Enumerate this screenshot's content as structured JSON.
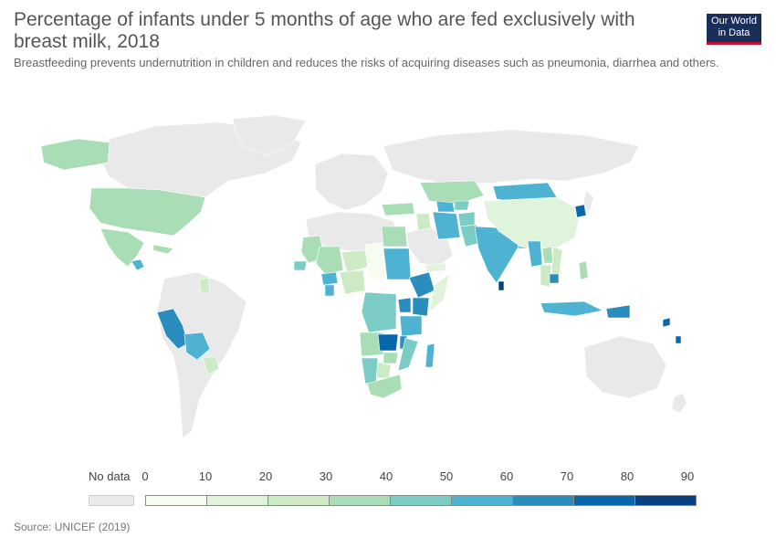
{
  "header": {
    "title": "Percentage of infants under 5 months of age who are fed exclusively with breast milk, 2018",
    "subtitle": "Breastfeeding prevents undernutrition in children and reduces the risks of acquiring diseases such as pneumonia, diarrhea and others."
  },
  "logo": {
    "line1": "Our World",
    "line2": "in Data",
    "bg": "#1a2e5a",
    "accent": "#c8102e"
  },
  "legend": {
    "no_data_label": "No data",
    "no_data_color": "#e9e9e9",
    "ticks": [
      "0",
      "10",
      "20",
      "30",
      "40",
      "50",
      "60",
      "70",
      "80",
      "90"
    ],
    "bins": [
      "#f7fcf0",
      "#e0f3db",
      "#ccebc5",
      "#a8ddb5",
      "#7bccc4",
      "#4eb3d3",
      "#2b8cbe",
      "#0868ac",
      "#084081"
    ]
  },
  "source": "Source: UNICEF (2019)",
  "chart_data": {
    "type": "choropleth",
    "value_unit": "%",
    "scale": [
      0,
      90
    ],
    "regions": [
      {
        "name": "United States",
        "value": 35
      },
      {
        "name": "Mexico",
        "value": 30
      },
      {
        "name": "Guatemala",
        "value": 55
      },
      {
        "name": "Peru",
        "value": 65
      },
      {
        "name": "Bolivia",
        "value": 55
      },
      {
        "name": "Paraguay",
        "value": 25
      },
      {
        "name": "Guyana",
        "value": 25
      },
      {
        "name": "Mauritania",
        "value": 40
      },
      {
        "name": "Senegal",
        "value": 45
      },
      {
        "name": "Mali",
        "value": 40
      },
      {
        "name": "Burkina Faso",
        "value": 50
      },
      {
        "name": "Ghana",
        "value": 55
      },
      {
        "name": "Nigeria",
        "value": 25
      },
      {
        "name": "Niger",
        "value": 25
      },
      {
        "name": "Chad",
        "value": 5
      },
      {
        "name": "Sudan",
        "value": 55
      },
      {
        "name": "Egypt",
        "value": 40
      },
      {
        "name": "Ethiopia",
        "value": 60
      },
      {
        "name": "Somalia",
        "value": 10
      },
      {
        "name": "Kenya",
        "value": 60
      },
      {
        "name": "Uganda",
        "value": 65
      },
      {
        "name": "Tanzania",
        "value": 60
      },
      {
        "name": "DR Congo",
        "value": 45
      },
      {
        "name": "Angola",
        "value": 40
      },
      {
        "name": "Zambia",
        "value": 70
      },
      {
        "name": "Malawi",
        "value": 65
      },
      {
        "name": "Mozambique",
        "value": 45
      },
      {
        "name": "Zimbabwe",
        "value": 40
      },
      {
        "name": "Namibia",
        "value": 45
      },
      {
        "name": "Botswana",
        "value": 30
      },
      {
        "name": "South Africa",
        "value": 30
      },
      {
        "name": "Madagascar",
        "value": 50
      },
      {
        "name": "Turkey",
        "value": 30
      },
      {
        "name": "Iraq",
        "value": 20
      },
      {
        "name": "Iran",
        "value": 50
      },
      {
        "name": "Yemen",
        "value": 10
      },
      {
        "name": "Kazakhstan",
        "value": 35
      },
      {
        "name": "Turkmenistan",
        "value": 55
      },
      {
        "name": "Uzbekistan",
        "value": 50
      },
      {
        "name": "Afghanistan",
        "value": 45
      },
      {
        "name": "Pakistan",
        "value": 45
      },
      {
        "name": "India",
        "value": 55
      },
      {
        "name": "Nepal",
        "value": 65
      },
      {
        "name": "Bangladesh",
        "value": 55
      },
      {
        "name": "Sri Lanka",
        "value": 82
      },
      {
        "name": "Mongolia",
        "value": 58
      },
      {
        "name": "China",
        "value": 20
      },
      {
        "name": "North Korea",
        "value": 72
      },
      {
        "name": "Myanmar",
        "value": 50
      },
      {
        "name": "Thailand",
        "value": 20
      },
      {
        "name": "Laos",
        "value": 40
      },
      {
        "name": "Vietnam",
        "value": 25
      },
      {
        "name": "Cambodia",
        "value": 65
      },
      {
        "name": "Philippines",
        "value": 35
      },
      {
        "name": "Indonesia",
        "value": 50
      },
      {
        "name": "Papua New Guinea",
        "value": 60
      },
      {
        "name": "Solomon Islands",
        "value": 75
      }
    ]
  }
}
